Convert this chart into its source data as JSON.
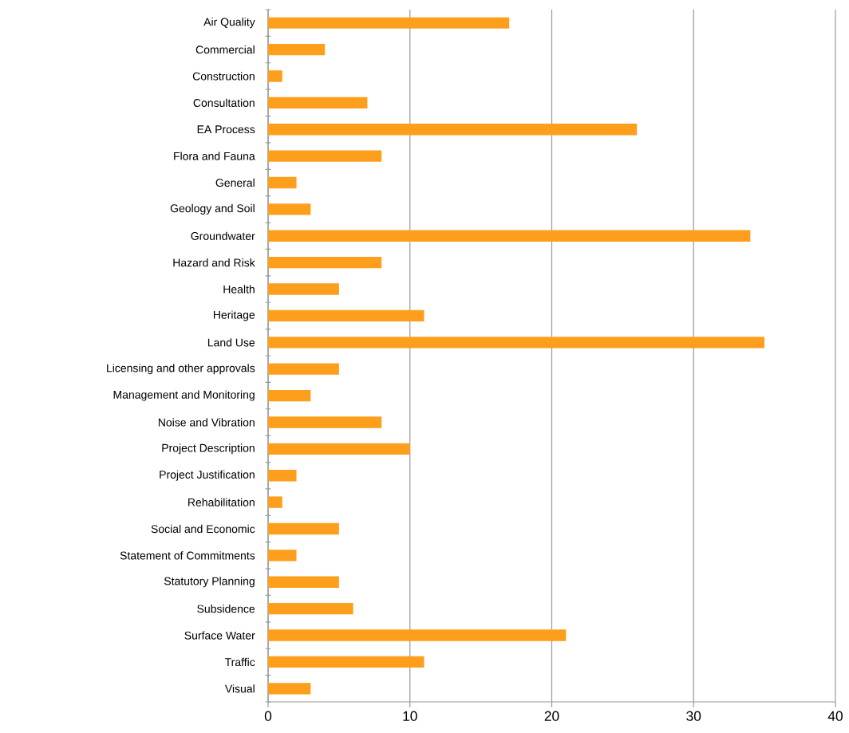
{
  "chart_data": {
    "type": "bar",
    "orientation": "horizontal",
    "categories": [
      "Air Quality",
      "Commercial",
      "Construction",
      "Consultation",
      "EA Process",
      "Flora and Fauna",
      "General",
      "Geology and Soil",
      "Groundwater",
      "Hazard and Risk",
      "Health",
      "Heritage",
      "Land Use",
      "Licensing and other approvals",
      "Management and Monitoring",
      "Noise and Vibration",
      "Project Description",
      "Project Justification",
      "Rehabilitation",
      "Social and Economic",
      "Statement of Commitments",
      "Statutory Planning",
      "Subsidence",
      "Surface Water",
      "Traffic",
      "Visual"
    ],
    "values": [
      17,
      4,
      1,
      7,
      26,
      8,
      2,
      3,
      34,
      8,
      5,
      11,
      35,
      5,
      3,
      8,
      10,
      2,
      1,
      5,
      2,
      5,
      6,
      21,
      11,
      3
    ],
    "color": "#fd9f1d",
    "xlim": [
      0,
      40
    ],
    "xticks": [
      0,
      10,
      20,
      30,
      40
    ],
    "grid": "x"
  }
}
